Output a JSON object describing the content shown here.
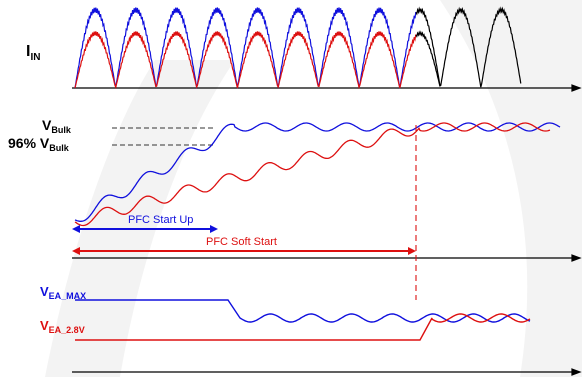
{
  "labels": {
    "iin_main": "I",
    "iin_sub": "IN",
    "vbulk_main": "V",
    "vbulk_sub": "Bulk",
    "vbulk96_prefix": "96% V",
    "vbulk96_sub": "Bulk",
    "pfc_start_up": "PFC Start Up",
    "pfc_soft_start": "PFC Soft Start",
    "vea_max_main": "V",
    "vea_max_sub": "EA_MAX",
    "vea_28_main": "V",
    "vea_28_sub": "EA_2.8V"
  },
  "colors": {
    "blue": "#1010dd",
    "red": "#dd1010",
    "black": "#000000",
    "purple": "#882288",
    "dashed": "#333333",
    "watermark": "#f2f2f2"
  },
  "traces": {
    "iin_blue_amplitude": 1.0,
    "iin_red_amplitude": 0.7,
    "half_cycles": 11,
    "ripple_cycles": 10
  }
}
